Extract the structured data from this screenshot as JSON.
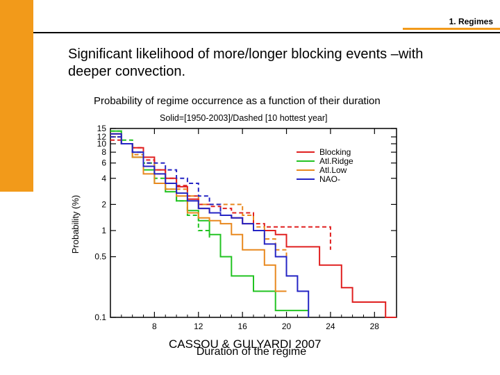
{
  "slide": {
    "section_label": "1. Regimes",
    "headline": "Significant likelihood of more/longer  blocking events –with deeper convection.",
    "credit": "CASSOU & GULYARDI 2007",
    "accent_color": "#f29a1a"
  },
  "chart_data": {
    "type": "line",
    "title": "Probability of regime occurrence as a function of their duration",
    "subtitle": "Solid=[1950-2003]/Dashed [10 hottest year]",
    "xlabel": "Duration of the regime",
    "ylabel": "Probability (%)",
    "y_scale": "log",
    "xlim": [
      4,
      30
    ],
    "ylim": [
      0.1,
      15
    ],
    "x_ticks": [
      8,
      12,
      16,
      20,
      24,
      28
    ],
    "y_ticks": [
      15,
      12,
      10,
      8,
      6,
      4,
      2,
      1,
      0.5,
      0.1
    ],
    "y_tick_labels": [
      "15",
      "12",
      "10",
      "8",
      "6",
      "4",
      "2",
      "1",
      "0.5",
      "0.1"
    ],
    "legend_position": "top-right",
    "grid": false,
    "series": [
      {
        "name": "Blocking",
        "color": "#e02020",
        "style": "solid",
        "points": [
          [
            4,
            13
          ],
          [
            5,
            10
          ],
          [
            6,
            9
          ],
          [
            7,
            7
          ],
          [
            8,
            5
          ],
          [
            9,
            4
          ],
          [
            10,
            3.2
          ],
          [
            11,
            2.3
          ],
          [
            12,
            1.8
          ],
          [
            13,
            1.6
          ],
          [
            14,
            1.5
          ],
          [
            15,
            1.4
          ],
          [
            16,
            1.2
          ],
          [
            17,
            1.0
          ],
          [
            18,
            1.0
          ],
          [
            19,
            0.9
          ],
          [
            20,
            0.65
          ],
          [
            21,
            0.65
          ],
          [
            22,
            0.65
          ],
          [
            23,
            0.4
          ],
          [
            24,
            0.4
          ],
          [
            25,
            0.22
          ],
          [
            26,
            0.15
          ],
          [
            27,
            0.15
          ],
          [
            28,
            0.15
          ],
          [
            29,
            0.1
          ],
          [
            30,
            0.1
          ]
        ]
      },
      {
        "name": "Blocking",
        "color": "#e02020",
        "style": "dashed",
        "points": [
          [
            4,
            11
          ],
          [
            5,
            10
          ],
          [
            6,
            9
          ],
          [
            7,
            6.5
          ],
          [
            8,
            5
          ],
          [
            9,
            4
          ],
          [
            10,
            3.3
          ],
          [
            11,
            2.5
          ],
          [
            12,
            2.0
          ],
          [
            13,
            1.9
          ],
          [
            14,
            1.8
          ],
          [
            15,
            1.6
          ],
          [
            16,
            1.6
          ],
          [
            17,
            1.2
          ],
          [
            18,
            1.1
          ],
          [
            19,
            1.1
          ],
          [
            20,
            1.1
          ],
          [
            21,
            1.1
          ],
          [
            22,
            1.1
          ],
          [
            23,
            1.1
          ],
          [
            24,
            0.6
          ]
        ]
      },
      {
        "name": "Atl.Ridge",
        "color": "#22c322",
        "style": "solid",
        "points": [
          [
            4,
            14
          ],
          [
            5,
            10
          ],
          [
            6,
            7
          ],
          [
            7,
            5
          ],
          [
            8,
            3.5
          ],
          [
            9,
            2.8
          ],
          [
            10,
            2.2
          ],
          [
            11,
            1.7
          ],
          [
            12,
            1.3
          ],
          [
            13,
            0.9
          ],
          [
            14,
            0.5
          ],
          [
            15,
            0.3
          ],
          [
            16,
            0.3
          ],
          [
            17,
            0.2
          ],
          [
            18,
            0.2
          ],
          [
            19,
            0.12
          ],
          [
            20,
            0.12
          ],
          [
            21,
            0.12
          ],
          [
            22,
            0.12
          ]
        ]
      },
      {
        "name": "Atl.Ridge",
        "color": "#22c322",
        "style": "dashed",
        "points": [
          [
            4,
            14
          ],
          [
            5,
            11
          ],
          [
            6,
            8
          ],
          [
            7,
            6
          ],
          [
            8,
            4
          ],
          [
            9,
            3
          ],
          [
            10,
            2.2
          ],
          [
            11,
            1.5
          ],
          [
            12,
            1.0
          ],
          [
            13,
            0.8
          ]
        ]
      },
      {
        "name": "Atl.Low",
        "color": "#e8881e",
        "style": "solid",
        "points": [
          [
            4,
            13
          ],
          [
            5,
            10
          ],
          [
            6,
            7
          ],
          [
            7,
            4.5
          ],
          [
            8,
            3.5
          ],
          [
            9,
            3.0
          ],
          [
            10,
            2.5
          ],
          [
            11,
            1.6
          ],
          [
            12,
            1.4
          ],
          [
            13,
            1.3
          ],
          [
            14,
            1.2
          ],
          [
            15,
            0.9
          ],
          [
            16,
            0.6
          ],
          [
            17,
            0.6
          ],
          [
            18,
            0.4
          ],
          [
            19,
            0.2
          ],
          [
            20,
            0.2
          ]
        ]
      },
      {
        "name": "Atl.Low",
        "color": "#e8881e",
        "style": "dashed",
        "points": [
          [
            4,
            12
          ],
          [
            5,
            10
          ],
          [
            6,
            7.5
          ],
          [
            7,
            6
          ],
          [
            8,
            4.5
          ],
          [
            9,
            3.5
          ],
          [
            10,
            3.0
          ],
          [
            11,
            2.5
          ],
          [
            12,
            2.0
          ],
          [
            13,
            2.0
          ],
          [
            14,
            2.0
          ],
          [
            15,
            2.0
          ],
          [
            16,
            1.5
          ],
          [
            17,
            1.1
          ],
          [
            18,
            0.8
          ],
          [
            19,
            0.6
          ],
          [
            20,
            0.5
          ]
        ]
      },
      {
        "name": "NAO-",
        "color": "#2424c4",
        "style": "solid",
        "points": [
          [
            4,
            13
          ],
          [
            5,
            10
          ],
          [
            6,
            8
          ],
          [
            7,
            5.5
          ],
          [
            8,
            4.5
          ],
          [
            9,
            3.5
          ],
          [
            10,
            2.7
          ],
          [
            11,
            2.2
          ],
          [
            12,
            1.8
          ],
          [
            13,
            1.6
          ],
          [
            14,
            1.5
          ],
          [
            15,
            1.4
          ],
          [
            16,
            1.2
          ],
          [
            17,
            1.0
          ],
          [
            18,
            0.7
          ],
          [
            19,
            0.5
          ],
          [
            20,
            0.3
          ],
          [
            21,
            0.2
          ],
          [
            22,
            0.1
          ]
        ]
      },
      {
        "name": "NAO-",
        "color": "#2424c4",
        "style": "dashed",
        "points": [
          [
            4,
            12
          ],
          [
            5,
            10
          ],
          [
            6,
            8
          ],
          [
            7,
            6
          ],
          [
            8,
            6
          ],
          [
            9,
            5
          ],
          [
            10,
            4.0
          ],
          [
            11,
            3.5
          ],
          [
            12,
            2.5
          ],
          [
            13,
            2.0
          ],
          [
            14,
            1.5
          ]
        ]
      }
    ]
  }
}
